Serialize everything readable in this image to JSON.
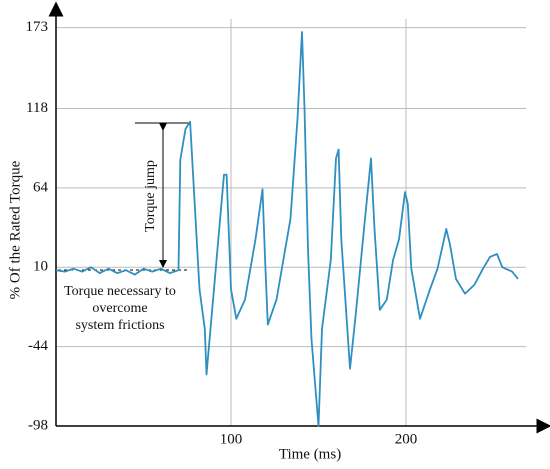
{
  "chart_data": {
    "type": "line",
    "x_label": "Time (ms)",
    "y_label": "% Of the Rated Torque",
    "annotations": {
      "jump": "Torque jump",
      "friction": [
        "Torque necessary to",
        "overcome",
        "system frictions"
      ]
    },
    "x": [
      0,
      5,
      10,
      15,
      20,
      25,
      30,
      35,
      40,
      45,
      50,
      55,
      60,
      65,
      70,
      71,
      74,
      76.6,
      82,
      85,
      86,
      96,
      97.5,
      100,
      103,
      108,
      114,
      118,
      119.5,
      121,
      126,
      134,
      138,
      140.6,
      142,
      144,
      146,
      150,
      152,
      157,
      160,
      161.5,
      163,
      168,
      171,
      176.6,
      180,
      182,
      185,
      189,
      192.6,
      196,
      199.4,
      201,
      203,
      208,
      213.7,
      218,
      223,
      225,
      228.6,
      233.7,
      239,
      244,
      248,
      252,
      255,
      260.6,
      264
    ],
    "color": "#2f8fc0",
    "values": [
      8,
      7,
      9,
      7,
      10,
      6,
      9,
      6,
      8,
      5,
      9,
      7,
      9,
      6,
      8,
      83,
      104,
      109,
      -5,
      -32,
      -63,
      73,
      73,
      -5,
      -25,
      -12,
      29,
      63,
      15,
      -29,
      -12,
      43,
      111,
      170,
      118,
      22,
      -39,
      -98,
      -32,
      15,
      84,
      90,
      29,
      -59,
      -25,
      43,
      84,
      36,
      -19,
      -12,
      15,
      29,
      61,
      53,
      9,
      -25,
      -5,
      9,
      36,
      26,
      2,
      -8,
      -2,
      9,
      17,
      19,
      10,
      7,
      2
    ],
    "xlim": [
      0,
      280
    ],
    "ylim": [
      -98,
      187
    ],
    "xticks": [
      100,
      200
    ],
    "yticks": [
      -98,
      -44,
      10,
      64,
      118,
      173
    ],
    "grid": true
  }
}
